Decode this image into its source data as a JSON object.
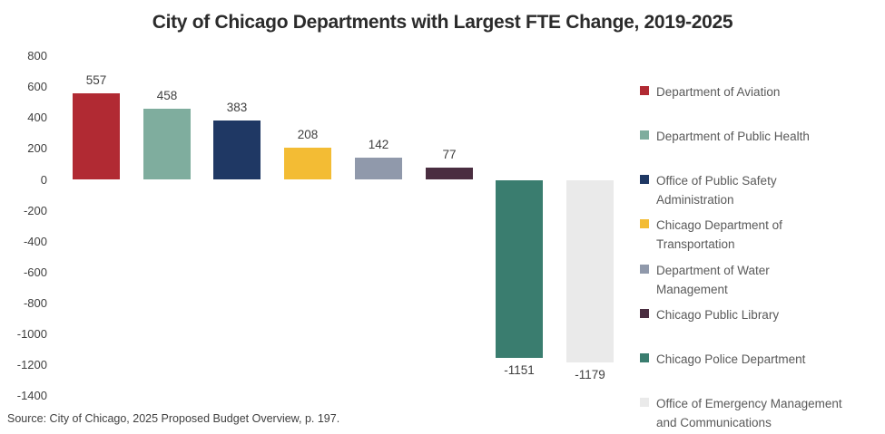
{
  "title": "City of Chicago Departments with Largest FTE Change, 2019-2025",
  "source_note": "Source: City of Chicago, 2025 Proposed Budget Overview, p. 197.",
  "chart_data": {
    "type": "bar",
    "title": "City of Chicago Departments with Largest FTE Change, 2019-2025",
    "categories": [
      "Department of Aviation",
      "Department of Public Health",
      "Office of Public Safety Administration",
      "Chicago Department of Transportation",
      "Department of Water Management",
      "Chicago Public Library",
      "Chicago Police Department",
      "Office of Emergency Management and Communications"
    ],
    "values": [
      557,
      458,
      383,
      208,
      142,
      77,
      -1151,
      -1179
    ],
    "data_labels": [
      "557",
      "458",
      "383",
      "208",
      "142",
      "77",
      "-1151",
      "-1179"
    ],
    "colors": [
      "#B12A33",
      "#7FAD9E",
      "#1F3864",
      "#F3BC34",
      "#9099AB",
      "#4A2D40",
      "#3A7D6F",
      "#EAEAEA"
    ],
    "xlabel": "",
    "ylabel": "",
    "ylim": [
      -1400,
      800
    ],
    "ytick_step": 200,
    "yticks": [
      800,
      600,
      400,
      200,
      0,
      -200,
      -400,
      -600,
      -800,
      -1000,
      -1200,
      -1400
    ],
    "grid": false,
    "legend_position": "right",
    "legend_lines": [
      [
        "Department of Aviation"
      ],
      [
        "Department of Public Health"
      ],
      [
        "Office of Public Safety",
        "Administration"
      ],
      [
        "Chicago Department of",
        "Transportation"
      ],
      [
        "Department of Water",
        "Management"
      ],
      [
        "Chicago Public Library"
      ],
      [
        "Chicago Police Department"
      ],
      [
        "Office of Emergency Management",
        "and Communications"
      ]
    ]
  }
}
